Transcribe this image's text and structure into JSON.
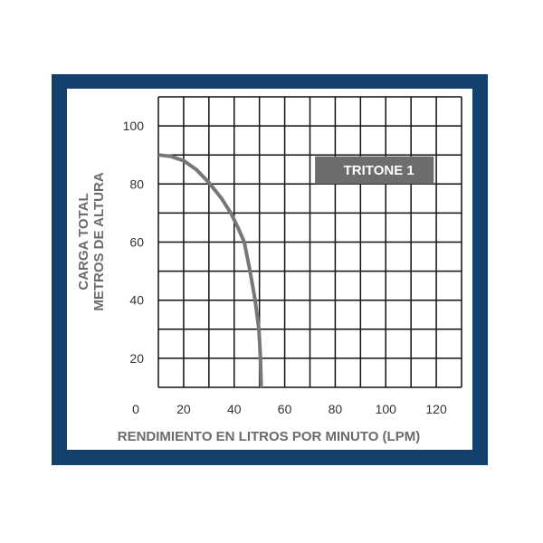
{
  "chart_data": {
    "type": "line",
    "title": "",
    "xlabel": "RENDIMIENTO EN LITROS POR MINUTO (LPM)",
    "ylabel": [
      "CARGA TOTAL",
      "METROS DE ALTURA"
    ],
    "xlim": [
      10,
      130
    ],
    "ylim": [
      10,
      110
    ],
    "x_ticks": [
      0,
      20,
      40,
      60,
      80,
      100,
      120
    ],
    "y_ticks": [
      20,
      40,
      60,
      80,
      100
    ],
    "grid": true,
    "grid_step": {
      "x": 10,
      "y": 10
    },
    "series": [
      {
        "name": "TRITONE 1",
        "color": "#777777",
        "x": [
          10,
          15,
          20,
          25,
          30,
          35,
          38.7,
          41.5,
          44,
          46.3,
          48.3,
          49.8,
          50.4,
          50.7
        ],
        "y": [
          90,
          89.5,
          88,
          85,
          80.5,
          75,
          70,
          65,
          60,
          50,
          40,
          30,
          20,
          10
        ]
      }
    ],
    "legend": {
      "label": "TRITONE 1",
      "placement": "top-right",
      "color": "#6d6d6d"
    },
    "frame_color": "#13406d"
  }
}
